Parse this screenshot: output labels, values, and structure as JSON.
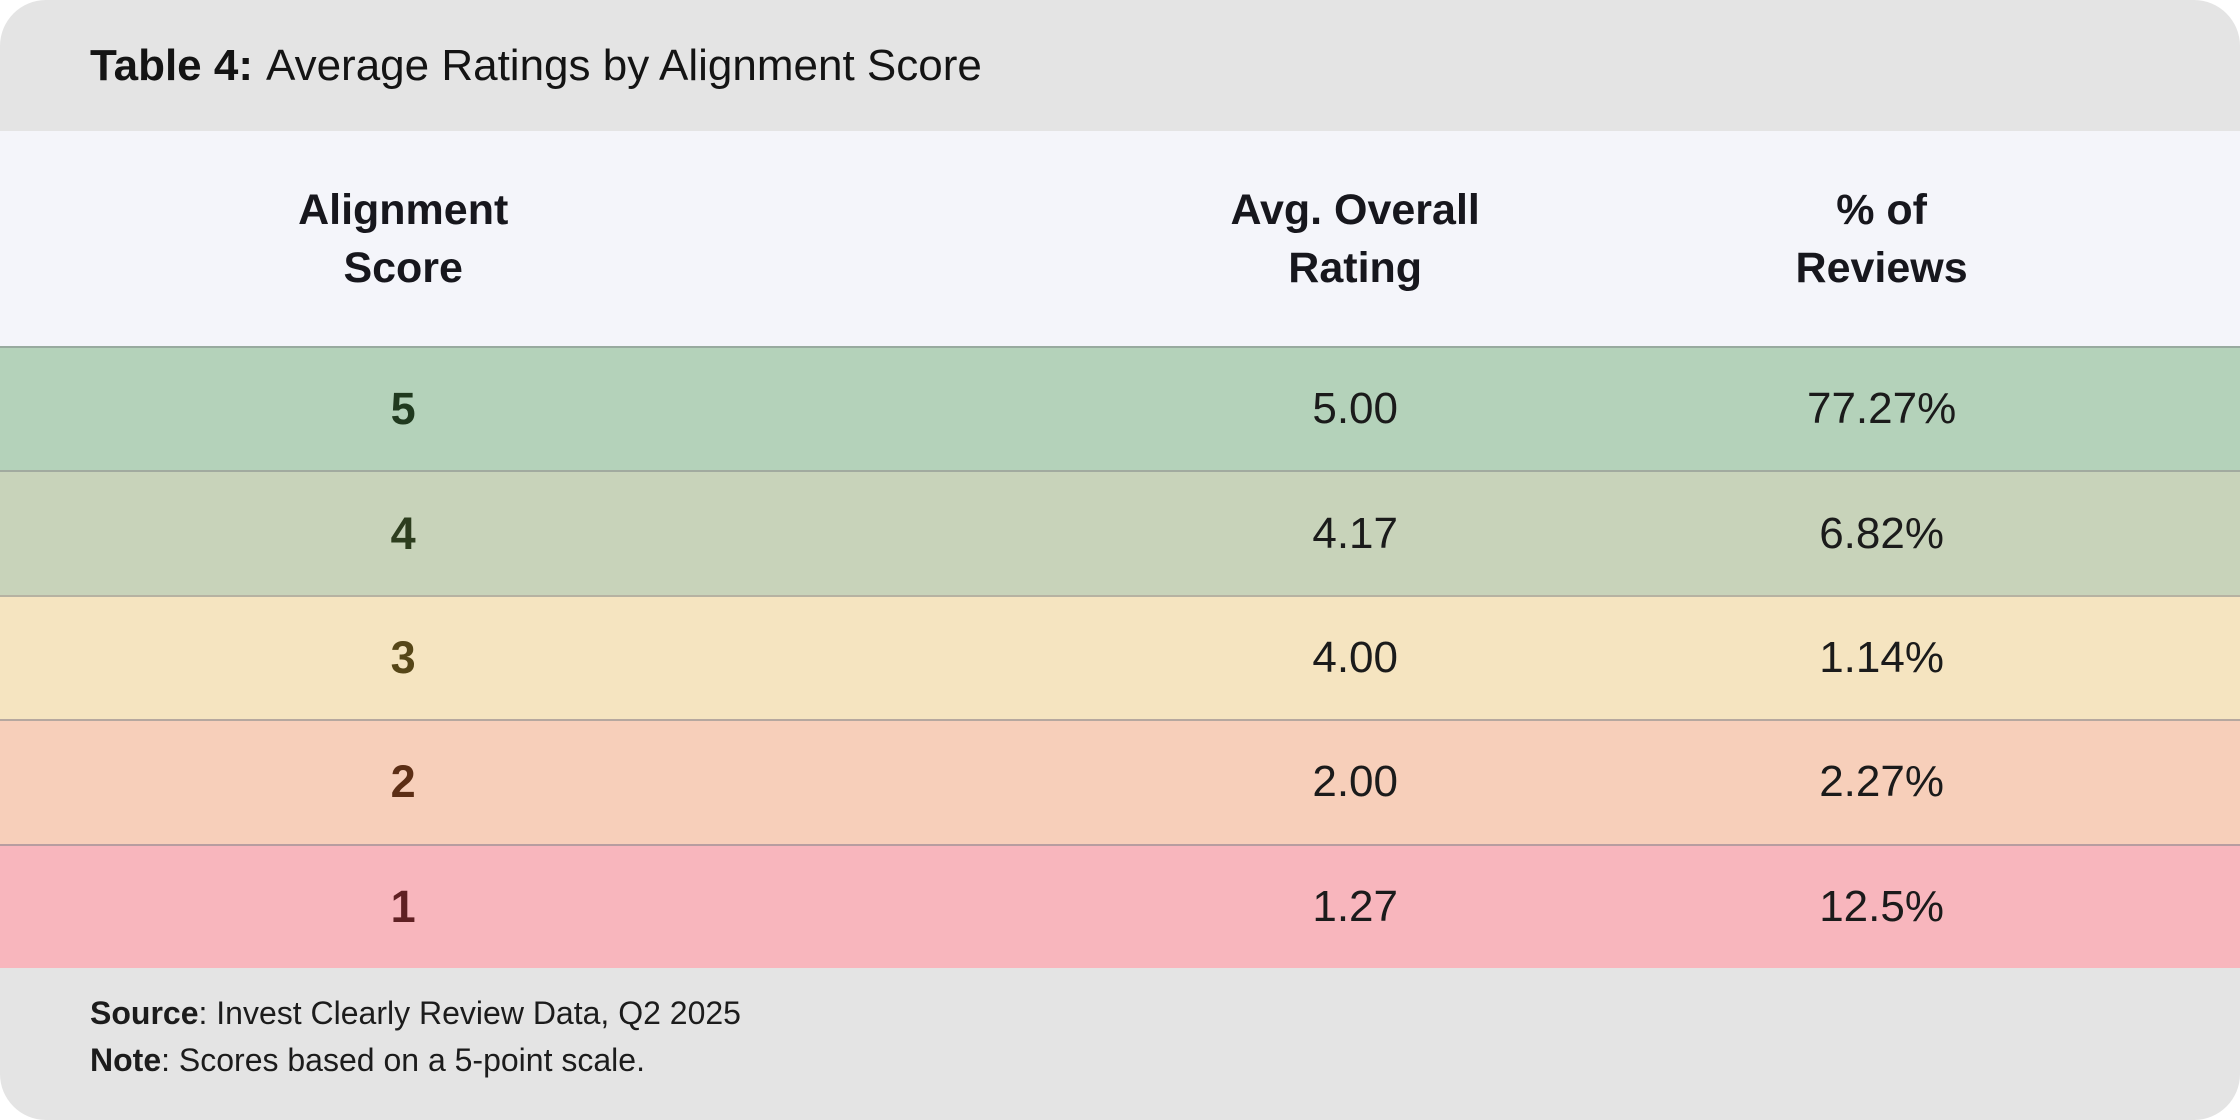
{
  "title": {
    "label": "Table 4:",
    "text": "Average Ratings by Alignment Score"
  },
  "table": {
    "columns": [
      {
        "label": "Alignment\nScore"
      },
      {
        "label": "Avg. Overall\nRating"
      },
      {
        "label": "% of\nReviews"
      }
    ],
    "rows": [
      {
        "score": "5",
        "avg_rating": "5.00",
        "pct_reviews": "77.27%",
        "bg": "#b4d2ba",
        "score_color": "#203a1f"
      },
      {
        "score": "4",
        "avg_rating": "4.17",
        "pct_reviews": "6.82%",
        "bg": "#c8d3ba",
        "score_color": "#2d3d1e"
      },
      {
        "score": "3",
        "avg_rating": "4.00",
        "pct_reviews": "1.14%",
        "bg": "#f5e4c0",
        "score_color": "#564618"
      },
      {
        "score": "2",
        "avg_rating": "2.00",
        "pct_reviews": "2.27%",
        "bg": "#f7cfba",
        "score_color": "#5c2e15"
      },
      {
        "score": "1",
        "avg_rating": "1.27",
        "pct_reviews": "12.5%",
        "bg": "#f8b6bd",
        "score_color": "#5f2023"
      }
    ]
  },
  "footer": {
    "source_label": "Source",
    "source_text": ": Invest Clearly Review Data, Q2 2025",
    "note_label": "Note",
    "note_text": ": Scores based on a 5-point scale."
  },
  "colors": {
    "title_bar_bg": "#e4e4e4",
    "header_bg": "#f4f5fa",
    "footer_bg": "#e4e4e4",
    "separator": "#828888",
    "value_text": "#1b1b1b",
    "header_text": "#17171d"
  },
  "chart_data": {
    "type": "table",
    "title": "Table 4: Average Ratings by Alignment Score",
    "columns": [
      "Alignment Score",
      "Avg. Overall Rating",
      "% of Reviews"
    ],
    "rows": [
      [
        5,
        5.0,
        77.27
      ],
      [
        4,
        4.17,
        6.82
      ],
      [
        3,
        4.0,
        1.14
      ],
      [
        2,
        2.0,
        2.27
      ],
      [
        1,
        1.27,
        12.5
      ]
    ],
    "notes": "Avg. Overall Rating on a 5-point scale; % of Reviews given in percent",
    "source": "Invest Clearly Review Data, Q2 2025"
  }
}
